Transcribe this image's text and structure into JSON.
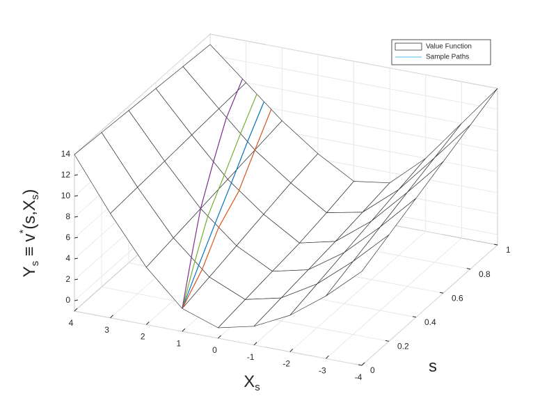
{
  "chart_data": {
    "type": "surface3d",
    "xlabel": [
      {
        "text": "X"
      },
      {
        "text": "s",
        "shift": "sub"
      }
    ],
    "slabel": [
      {
        "text": "s"
      }
    ],
    "zlabel": [
      {
        "text": "Y"
      },
      {
        "text": "s",
        "shift": "sub"
      },
      {
        "text": " ≡ v"
      },
      {
        "text": "*",
        "shift": "super"
      },
      {
        "text": "(s,X"
      },
      {
        "text": "s",
        "shift": "sub"
      },
      {
        "text": ")"
      }
    ],
    "xlim": [
      -4,
      4
    ],
    "xticks": [
      -4,
      -3,
      -2,
      -1,
      0,
      1,
      2,
      3,
      4
    ],
    "slim": [
      0,
      1
    ],
    "sticks": [
      0,
      0.2,
      0.4,
      0.6,
      0.8,
      1
    ],
    "zlim": [
      -1,
      14
    ],
    "zticks": [
      0,
      2,
      4,
      6,
      8,
      10,
      12,
      14
    ],
    "grid": true,
    "legend": {
      "position": "upper right",
      "entries": [
        "Value Function",
        "Sample Paths"
      ]
    },
    "surface": {
      "name": "Value Function",
      "color": "#ffffff",
      "edge_color": "#333333",
      "xgrid": [
        -4,
        -3,
        -2,
        -1,
        0,
        1,
        2,
        3,
        4
      ],
      "sgrid": [
        0,
        0.2,
        0.4,
        0.6,
        0.8,
        1
      ],
      "z": [
        [
          8,
          5,
          2.5,
          0.8,
          0,
          1.2,
          4.5,
          9,
          14
        ],
        [
          9.2,
          6,
          3.2,
          1.2,
          0.4,
          1.9,
          5,
          9.2,
          13.8
        ],
        [
          10.4,
          7,
          3.9,
          1.6,
          0.8,
          2.6,
          5.5,
          9.4,
          13.6
        ],
        [
          11.6,
          8,
          4.6,
          2,
          1.2,
          3.3,
          6,
          9.6,
          13.4
        ],
        [
          12.8,
          9,
          5.3,
          2.5,
          1.8,
          4,
          6.5,
          9.8,
          13.2
        ],
        [
          14,
          10,
          6,
          3,
          2.5,
          4.5,
          7,
          10,
          13
        ]
      ]
    },
    "paths": {
      "name": "Sample Paths",
      "legend_color": "#4dbeee",
      "series": [
        {
          "color": "#0072bd",
          "s": [
            0,
            0.2,
            0.4,
            0.6,
            0.8,
            1
          ],
          "x": [
            1,
            1.3,
            1.6,
            1.9,
            2.2,
            2.5
          ],
          "values": [
            1.2,
            2.8,
            4.3,
            5.7,
            7.2,
            8.5
          ]
        },
        {
          "color": "#d95319",
          "s": [
            0,
            0.2,
            0.4,
            0.6,
            0.8,
            1
          ],
          "x": [
            1,
            1.2,
            1.5,
            1.7,
            2,
            2.3
          ],
          "values": [
            1.2,
            2.5,
            4,
            5,
            6.5,
            7.9
          ]
        },
        {
          "color": "#77ac30",
          "s": [
            0,
            0.2,
            0.4,
            0.6,
            0.8,
            1
          ],
          "x": [
            1,
            1.4,
            1.8,
            2.1,
            2.4,
            2.7
          ],
          "values": [
            1.2,
            3.2,
            4.9,
            6.3,
            7.8,
            9.1
          ]
        },
        {
          "color": "#7e2f8e",
          "s": [
            0,
            0.2,
            0.4,
            0.6,
            0.8,
            1
          ],
          "x": [
            1,
            1.5,
            2,
            2.4,
            2.8,
            3.1
          ],
          "values": [
            1.2,
            3.5,
            5.5,
            7.4,
            9,
            10.3
          ]
        }
      ]
    }
  }
}
